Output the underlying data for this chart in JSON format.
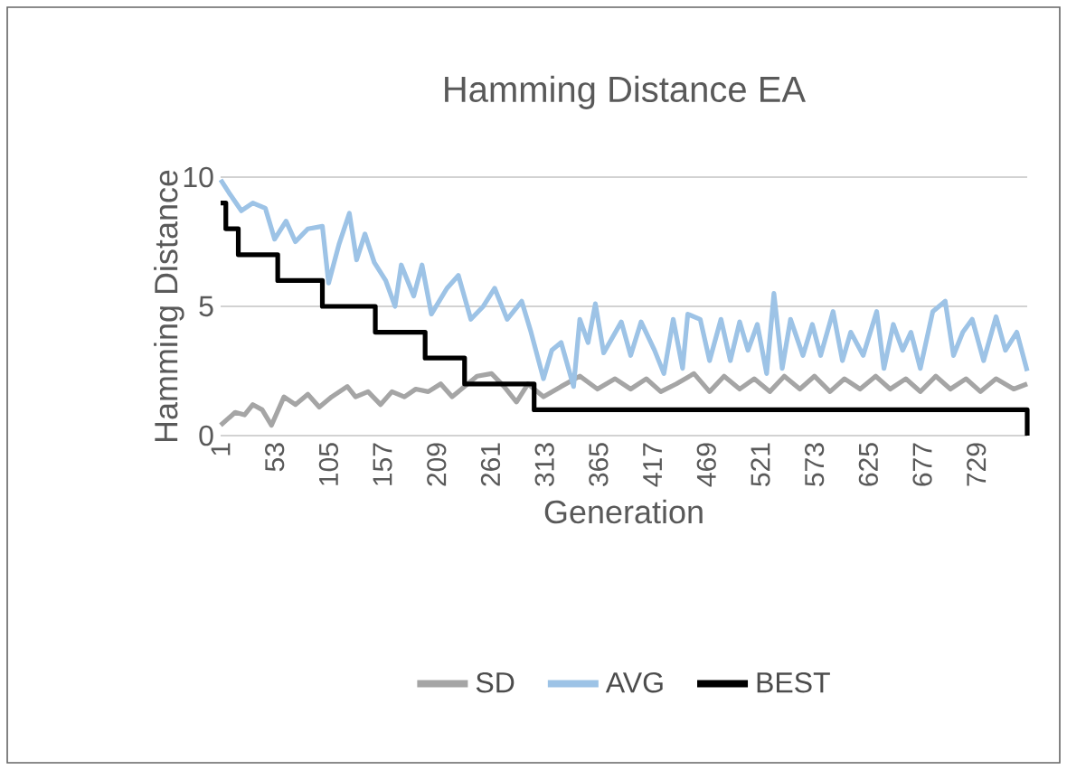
{
  "chart_data": {
    "type": "line",
    "title": "Hamming Distance EA",
    "xlabel": "Generation",
    "ylabel": "Hamming Distance",
    "xlim": [
      1,
      778
    ],
    "xticks": [
      1,
      53,
      105,
      157,
      209,
      261,
      313,
      365,
      417,
      469,
      521,
      573,
      625,
      677,
      729
    ],
    "ylim": [
      0,
      10
    ],
    "yticks": [
      0,
      5,
      10
    ],
    "grid": "y",
    "legend": "bottom",
    "series": [
      {
        "name": "SD",
        "color": "#a5a5a5",
        "x": [
          1,
          15,
          24,
          32,
          41,
          50,
          62,
          73,
          85,
          96,
          108,
          123,
          131,
          143,
          155,
          166,
          178,
          189,
          201,
          213,
          224,
          236,
          248,
          262,
          274,
          286,
          297,
          312,
          329,
          347,
          364,
          381,
          396,
          411,
          425,
          440,
          457,
          472,
          486,
          501,
          515,
          530,
          544,
          559,
          573,
          588,
          602,
          617,
          632,
          646,
          661,
          675,
          690,
          704,
          719,
          733,
          748,
          765,
          778
        ],
        "values": [
          0.4,
          0.9,
          0.8,
          1.2,
          1.0,
          0.4,
          1.5,
          1.2,
          1.6,
          1.1,
          1.5,
          1.9,
          1.5,
          1.7,
          1.2,
          1.7,
          1.5,
          1.8,
          1.7,
          2.0,
          1.5,
          1.9,
          2.3,
          2.4,
          1.9,
          1.3,
          2.0,
          1.5,
          1.9,
          2.3,
          1.8,
          2.2,
          1.8,
          2.2,
          1.7,
          2.0,
          2.4,
          1.7,
          2.3,
          1.8,
          2.2,
          1.7,
          2.3,
          1.8,
          2.3,
          1.7,
          2.2,
          1.8,
          2.3,
          1.8,
          2.2,
          1.7,
          2.3,
          1.8,
          2.2,
          1.7,
          2.2,
          1.8,
          2.0
        ]
      },
      {
        "name": "AVG",
        "color": "#9dc3e6",
        "x": [
          1,
          9,
          21,
          32,
          44,
          53,
          64,
          73,
          85,
          99,
          105,
          115,
          125,
          132,
          140,
          149,
          160,
          169,
          175,
          187,
          195,
          204,
          219,
          230,
          242,
          254,
          265,
          277,
          291,
          300,
          312,
          320,
          329,
          341,
          347,
          355,
          362,
          370,
          387,
          396,
          406,
          419,
          428,
          437,
          446,
          451,
          463,
          472,
          483,
          492,
          501,
          509,
          518,
          527,
          534,
          542,
          550,
          562,
          571,
          579,
          591,
          600,
          608,
          620,
          633,
          640,
          649,
          658,
          666,
          675,
          687,
          699,
          707,
          716,
          725,
          736,
          748,
          757,
          768,
          778
        ],
        "values": [
          9.9,
          9.4,
          8.7,
          9.0,
          8.8,
          7.6,
          8.3,
          7.5,
          8.0,
          8.1,
          5.9,
          7.4,
          8.6,
          6.8,
          7.8,
          6.7,
          6.0,
          5.0,
          6.6,
          5.4,
          6.6,
          4.7,
          5.7,
          6.2,
          4.5,
          5.0,
          5.7,
          4.5,
          5.2,
          4.0,
          2.2,
          3.3,
          3.6,
          1.9,
          4.5,
          3.6,
          5.1,
          3.2,
          4.4,
          3.1,
          4.4,
          3.3,
          2.4,
          4.5,
          2.6,
          4.7,
          4.5,
          2.9,
          4.5,
          2.9,
          4.4,
          3.3,
          4.3,
          2.4,
          5.5,
          2.6,
          4.5,
          3.1,
          4.3,
          3.1,
          4.8,
          2.9,
          4.0,
          3.1,
          4.8,
          2.6,
          4.3,
          3.3,
          4.0,
          2.6,
          4.8,
          5.2,
          3.1,
          4.0,
          4.5,
          2.9,
          4.6,
          3.3,
          4.0,
          2.5
        ]
      },
      {
        "name": "BEST",
        "type": "step",
        "color": "#000000",
        "x": [
          1,
          6,
          18,
          56,
          99,
          150,
          198,
          236,
          303,
          778
        ],
        "values": [
          9,
          8,
          7,
          6,
          5,
          4,
          3,
          2,
          1,
          0
        ]
      }
    ]
  }
}
